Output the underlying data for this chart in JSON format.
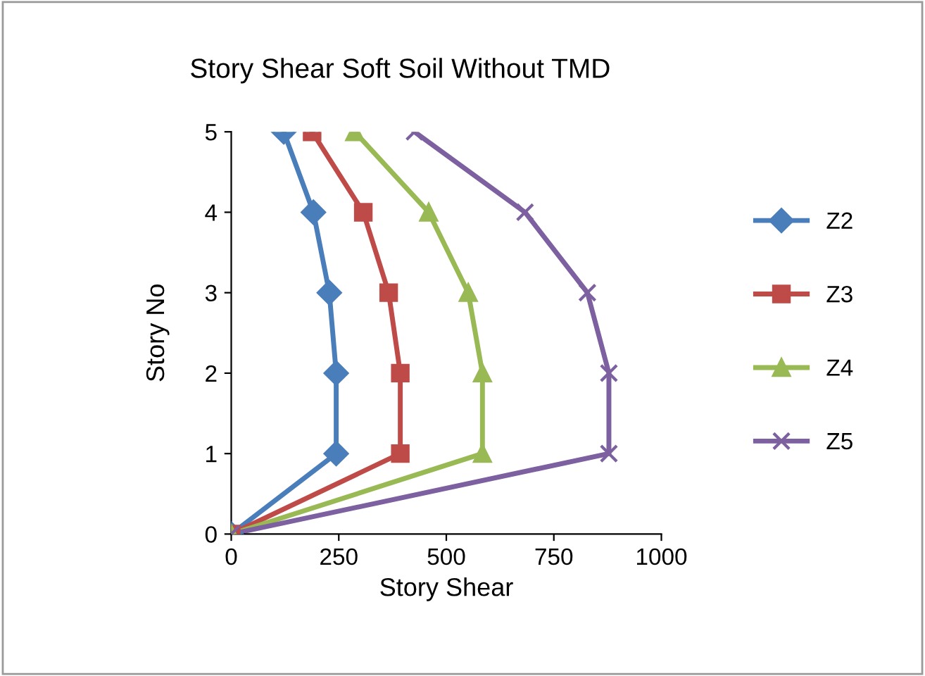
{
  "chart_data": {
    "type": "line",
    "title": "Story Shear Soft Soil Without TMD",
    "xlabel": "Story Shear",
    "ylabel": "Story No",
    "xlim": [
      0,
      1000
    ],
    "xticks": [
      0,
      250,
      500,
      750,
      1000
    ],
    "ylim": [
      0,
      5
    ],
    "yticks": [
      0,
      1,
      2,
      3,
      4,
      5
    ],
    "grid": false,
    "legend": "right",
    "line_style": "solid",
    "series": [
      {
        "name": "Z2",
        "color": "#4a7ebb",
        "marker": "diamond",
        "x": [
          0,
          244,
          244,
          228,
          191,
          122
        ],
        "values": [
          0,
          1,
          2,
          3,
          4,
          5
        ]
      },
      {
        "name": "Z3",
        "color": "#be4b48",
        "marker": "square",
        "x": [
          0,
          393,
          393,
          366,
          307,
          188
        ],
        "values": [
          0,
          1,
          2,
          3,
          4,
          5
        ]
      },
      {
        "name": "Z4",
        "color": "#98b954",
        "marker": "triangle",
        "x": [
          0,
          584,
          584,
          551,
          459,
          287
        ],
        "values": [
          0,
          1,
          2,
          3,
          4,
          5
        ]
      },
      {
        "name": "Z5",
        "color": "#7d60a0",
        "marker": "cross",
        "x": [
          0,
          878,
          878,
          828,
          683,
          426
        ],
        "values": [
          0,
          1,
          2,
          3,
          4,
          5
        ]
      }
    ]
  }
}
